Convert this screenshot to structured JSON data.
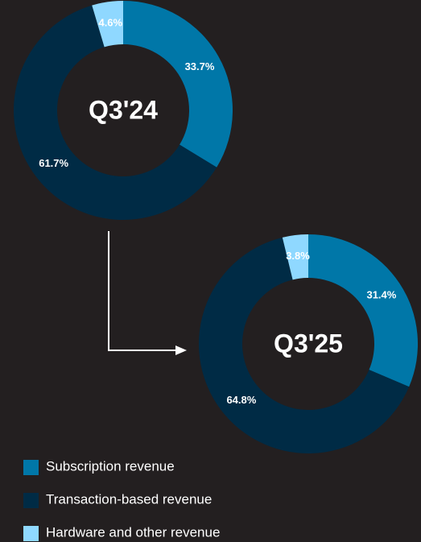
{
  "chart_data": [
    {
      "type": "pie",
      "title": "Q3'24",
      "categories": [
        "Subscription revenue",
        "Transaction-based revenue",
        "Hardware and other revenue"
      ],
      "values": [
        33.7,
        61.7,
        4.6
      ],
      "value_labels": [
        "33.7%",
        "61.7%",
        "4.6%"
      ],
      "colors": [
        "#0077a8",
        "#002b45",
        "#8fd8ff"
      ],
      "donut": true
    },
    {
      "type": "pie",
      "title": "Q3'25",
      "categories": [
        "Subscription revenue",
        "Transaction-based revenue",
        "Hardware and other revenue"
      ],
      "values": [
        31.4,
        64.8,
        3.8
      ],
      "value_labels": [
        "31.4%",
        "64.8%",
        "3.8%"
      ],
      "colors": [
        "#0077a8",
        "#002b45",
        "#8fd8ff"
      ],
      "donut": true
    }
  ]
}
